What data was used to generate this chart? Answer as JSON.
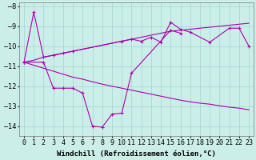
{
  "x": [
    0,
    1,
    2,
    3,
    4,
    5,
    6,
    7,
    8,
    9,
    10,
    11,
    12,
    13,
    14,
    15,
    16,
    17,
    18,
    19,
    20,
    21,
    22,
    23
  ],
  "line_reg1": [
    -10.8,
    -10.7,
    -10.55,
    -10.45,
    -10.35,
    -10.25,
    -10.15,
    -10.05,
    -9.95,
    -9.85,
    -9.75,
    -9.65,
    -9.55,
    -9.45,
    -9.35,
    -9.25,
    -9.2,
    -9.15,
    -9.1,
    -9.05,
    -9.0,
    -8.95,
    -8.9,
    -8.85
  ],
  "line_reg2": [
    -10.8,
    -10.95,
    -11.1,
    -11.25,
    -11.4,
    -11.55,
    -11.65,
    -11.78,
    -11.9,
    -12.0,
    -12.1,
    -12.2,
    -12.3,
    -12.4,
    -12.5,
    -12.6,
    -12.7,
    -12.78,
    -12.85,
    -12.9,
    -12.98,
    -13.05,
    -13.1,
    -13.18
  ],
  "line_upper_jagged_x": [
    0,
    1,
    2,
    3,
    4,
    5,
    10,
    11,
    12,
    13,
    14,
    15,
    16,
    17,
    19,
    21,
    22,
    23
  ],
  "line_upper_jagged_y": [
    -10.8,
    -8.3,
    -10.55,
    -10.45,
    -10.35,
    -10.25,
    -9.75,
    -9.65,
    -9.75,
    -9.55,
    -9.8,
    -8.8,
    -9.15,
    -9.3,
    -9.8,
    -9.1,
    -9.1,
    -10.0
  ],
  "line_lower_jagged_x": [
    0,
    2,
    3,
    4,
    5,
    6,
    7,
    8,
    9,
    10,
    11,
    15,
    16
  ],
  "line_lower_jagged_y": [
    -10.8,
    -10.8,
    -12.1,
    -12.1,
    -12.1,
    -12.35,
    -14.0,
    -14.05,
    -13.4,
    -13.35,
    -11.35,
    -9.2,
    -9.35
  ],
  "ylim": [
    -14.5,
    -7.8
  ],
  "xlim": [
    -0.5,
    23.5
  ],
  "xlabel": "Windchill (Refroidissement éolien,°C)",
  "bg_color": "#cceee8",
  "line_color": "#aa00aa",
  "grid_color": "#99cccc",
  "label_fontsize": 6.5,
  "tick_fontsize": 6.0
}
